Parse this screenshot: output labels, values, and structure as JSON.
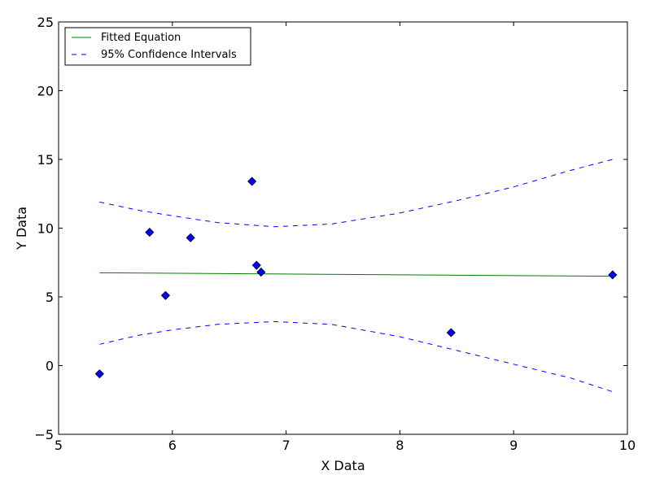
{
  "chart_data": {
    "type": "scatter",
    "title": "",
    "xlabel": "X Data",
    "ylabel": "Y Data",
    "xlim": [
      5,
      10
    ],
    "ylim": [
      -5,
      25
    ],
    "xticks": [
      5,
      6,
      7,
      8,
      9,
      10
    ],
    "yticks": [
      -5,
      0,
      5,
      10,
      15,
      20,
      25
    ],
    "grid": false,
    "legend_position": "top-left",
    "series": [
      {
        "name": "",
        "kind": "scatter",
        "marker": "diamond",
        "color": "#0000ff",
        "points": [
          {
            "x": 5.36,
            "y": -0.6
          },
          {
            "x": 5.8,
            "y": 9.7
          },
          {
            "x": 5.94,
            "y": 5.1
          },
          {
            "x": 6.16,
            "y": 9.3
          },
          {
            "x": 6.7,
            "y": 13.4
          },
          {
            "x": 6.74,
            "y": 7.3
          },
          {
            "x": 6.78,
            "y": 6.8
          },
          {
            "x": 8.45,
            "y": 2.4
          },
          {
            "x": 9.87,
            "y": 6.6
          }
        ]
      },
      {
        "name": "Fitted Equation",
        "kind": "line",
        "style": "solid",
        "color": "#008000",
        "points": [
          {
            "x": 5.36,
            "y": 6.75
          },
          {
            "x": 9.87,
            "y": 6.5
          }
        ]
      },
      {
        "name": "95% Confidence Intervals",
        "kind": "line",
        "style": "dashed",
        "color": "#0000ff",
        "points": [
          {
            "x": 5.36,
            "y": 11.9
          },
          {
            "x": 5.7,
            "y": 11.3
          },
          {
            "x": 6.0,
            "y": 10.9
          },
          {
            "x": 6.4,
            "y": 10.4
          },
          {
            "x": 6.9,
            "y": 10.1
          },
          {
            "x": 7.4,
            "y": 10.3
          },
          {
            "x": 8.0,
            "y": 11.1
          },
          {
            "x": 8.5,
            "y": 12.0
          },
          {
            "x": 9.0,
            "y": 13.0
          },
          {
            "x": 9.5,
            "y": 14.2
          },
          {
            "x": 9.87,
            "y": 15.0
          }
        ]
      },
      {
        "name": "",
        "kind": "line",
        "style": "dashed",
        "color": "#0000ff",
        "points": [
          {
            "x": 5.36,
            "y": 1.55
          },
          {
            "x": 5.7,
            "y": 2.2
          },
          {
            "x": 6.0,
            "y": 2.6
          },
          {
            "x": 6.4,
            "y": 3.0
          },
          {
            "x": 6.9,
            "y": 3.2
          },
          {
            "x": 7.4,
            "y": 3.0
          },
          {
            "x": 8.0,
            "y": 2.1
          },
          {
            "x": 8.5,
            "y": 1.1
          },
          {
            "x": 9.0,
            "y": 0.1
          },
          {
            "x": 9.5,
            "y": -0.9
          },
          {
            "x": 9.87,
            "y": -1.9
          }
        ]
      }
    ],
    "legend": [
      {
        "label": "Fitted Equation",
        "color": "#008000",
        "style": "solid"
      },
      {
        "label": "95% Confidence Intervals",
        "color": "#0000ff",
        "style": "dashed"
      }
    ]
  }
}
